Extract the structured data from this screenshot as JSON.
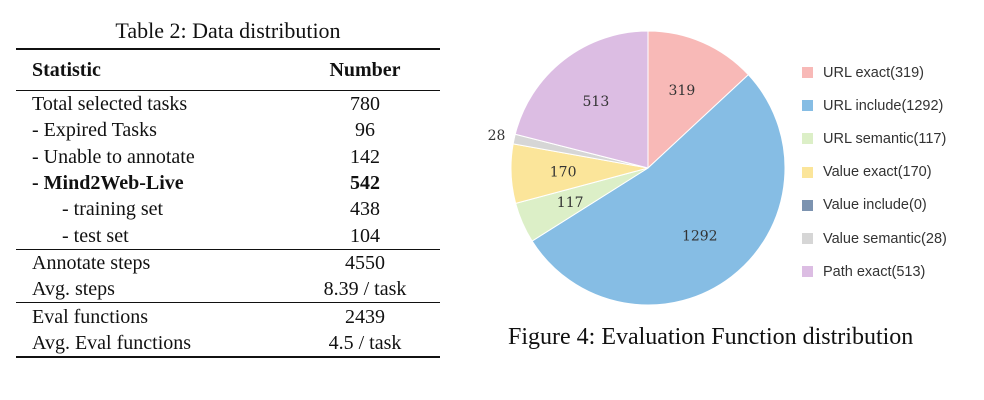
{
  "table": {
    "caption": "Table 2: Data distribution",
    "header": {
      "statistic": "Statistic",
      "number": "Number"
    },
    "rows": [
      {
        "label": "Total selected tasks",
        "value": "780"
      },
      {
        "label": "- Expired Tasks",
        "value": "96"
      },
      {
        "label": "- Unable to annotate",
        "value": "142"
      },
      {
        "label": "- Mind2Web-Live",
        "value": "542"
      },
      {
        "label": "- training set",
        "value": "438"
      },
      {
        "label": "- test set",
        "value": "104"
      },
      {
        "label": "Annotate steps",
        "value": "4550"
      },
      {
        "label": "Avg. steps",
        "value": "8.39 / task"
      },
      {
        "label": "Eval functions",
        "value": "2439"
      },
      {
        "label": "Avg. Eval functions",
        "value": "4.5 / task"
      }
    ]
  },
  "figure": {
    "caption": "Figure 4: Evaluation Function distribution"
  },
  "chart_data": {
    "type": "pie",
    "labels": [
      "URL exact",
      "URL include",
      "URL semantic",
      "Value exact",
      "Value include",
      "Value semantic",
      "Path exact"
    ],
    "values": [
      319,
      1292,
      117,
      170,
      0,
      28,
      513
    ],
    "slice_labels": [
      "319",
      "1292",
      "117",
      "170",
      "",
      "28",
      "513"
    ],
    "legend_entries": [
      "URL exact(319)",
      "URL include(1292)",
      "URL semantic(117)",
      "Value exact(170)",
      "Value include(0)",
      "Value semantic(28)",
      "Path exact(513)"
    ],
    "colors": [
      "#f8b9b7",
      "#86bde4",
      "#dcefc7",
      "#fbe59a",
      "#7c93b0",
      "#d6d6d6",
      "#dcbde3"
    ],
    "legend_position": "right",
    "start_angle": "top, clockwise"
  }
}
